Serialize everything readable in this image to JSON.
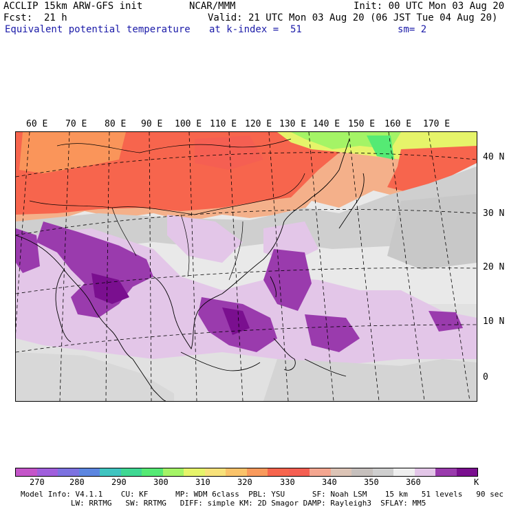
{
  "header": {
    "model": "ACCLIP 15km ARW-GFS init",
    "org": "NCAR/MMM",
    "init": "Init: 00 UTC Mon 03 Aug 20",
    "fcst_label": "Fcst:",
    "fcst_value": "21 h",
    "valid": "Valid: 21 UTC Mon 03 Aug 20 (06 JST Tue 04 Aug 20)",
    "field": "Equivalent potential temperature",
    "level": "at k-index =  51",
    "smooth": "sm= 2"
  },
  "map": {
    "lon_labels": [
      "60 E",
      "70 E",
      "80 E",
      "90 E",
      "100 E",
      "110 E",
      "120 E",
      "130 E",
      "140 E",
      "150 E",
      "160 E",
      "170 E"
    ],
    "lat_labels": [
      "40 N",
      "30 N",
      "20 N",
      "10 N",
      "0"
    ]
  },
  "colorbar": {
    "colors": [
      "#c455c9",
      "#a05fdc",
      "#7c72e0",
      "#5c86e0",
      "#3fc4c0",
      "#3fd893",
      "#55ea74",
      "#a4f466",
      "#e6f46a",
      "#f8e27a",
      "#fac36a",
      "#f99a5c",
      "#f7654d",
      "#f55f52",
      "#f4a690",
      "#dcc4b6",
      "#c6c0bd",
      "#cfcfcf",
      "#efefef",
      "#e3c6e8",
      "#9a3bad",
      "#7a0f8f"
    ],
    "labels": [
      "270",
      "280",
      "290",
      "300",
      "310",
      "320",
      "330",
      "340",
      "350",
      "360",
      "K"
    ]
  },
  "model_info": {
    "line1": "Model Info: V4.1.1    CU: KF      MP: WDM 6class  PBL: YSU      SF: Noah LSM    15 km   51 levels   90 sec",
    "line2": "           LW: RRTMG   SW: RRTMG   DIFF: simple KM: 2D Smagor DAMP: Rayleigh3  SFLAY: MM5"
  }
}
